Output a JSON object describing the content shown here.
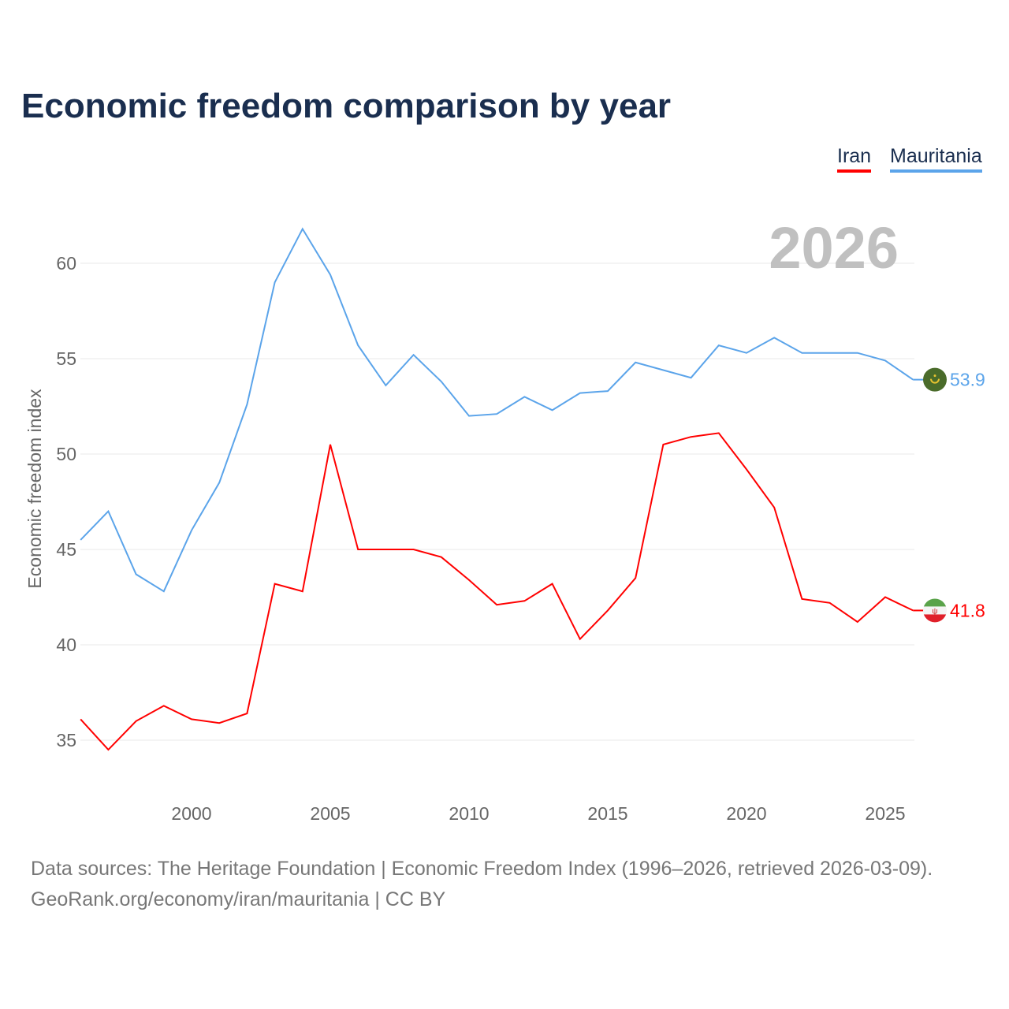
{
  "title": "Economic freedom comparison by year",
  "footer": {
    "line1": "Data sources: The Heritage Foundation | Economic Freedom Index (1996–2026, retrieved 2026-03-09).",
    "line2": "GeoRank.org/economy/iran/mauritania | CC BY"
  },
  "chart_data": {
    "type": "line",
    "title": "Economic freedom comparison by year",
    "ylabel": "Economic freedom index",
    "xlabel": "",
    "year_label": "2026",
    "xlim": [
      1996,
      2026
    ],
    "ylim": [
      32.5,
      63
    ],
    "xticks": [
      2000,
      2005,
      2010,
      2015,
      2020,
      2025
    ],
    "yticks": [
      35,
      40,
      45,
      50,
      55,
      60
    ],
    "grid": true,
    "legend_position": "top-right",
    "x": [
      1996,
      1997,
      1998,
      1999,
      2000,
      2001,
      2002,
      2003,
      2004,
      2005,
      2006,
      2007,
      2008,
      2009,
      2010,
      2011,
      2012,
      2013,
      2014,
      2015,
      2016,
      2017,
      2018,
      2019,
      2020,
      2021,
      2022,
      2023,
      2024,
      2025,
      2026
    ],
    "series": [
      {
        "name": "Iran",
        "color": "#ff0000",
        "end_label": "41.8",
        "flag": "iran-flag",
        "values": [
          36.1,
          34.5,
          36.0,
          36.8,
          36.1,
          35.9,
          36.4,
          43.2,
          42.8,
          50.5,
          45.0,
          45.0,
          45.0,
          44.6,
          43.4,
          42.1,
          42.3,
          43.2,
          40.3,
          41.8,
          43.5,
          50.5,
          50.9,
          51.1,
          49.2,
          47.2,
          42.4,
          42.2,
          41.2,
          42.5,
          41.8
        ]
      },
      {
        "name": "Mauritania",
        "color": "#5ba4ea",
        "end_label": "53.9",
        "flag": "mauritania-flag",
        "values": [
          45.5,
          47.0,
          43.7,
          42.8,
          46.0,
          48.5,
          52.6,
          59.0,
          61.8,
          59.4,
          55.7,
          53.6,
          55.2,
          53.8,
          52.0,
          52.1,
          53.0,
          52.3,
          53.2,
          53.3,
          54.8,
          54.4,
          54.0,
          55.7,
          55.3,
          56.1,
          55.3,
          55.3,
          55.3,
          54.9,
          53.9
        ]
      }
    ]
  }
}
